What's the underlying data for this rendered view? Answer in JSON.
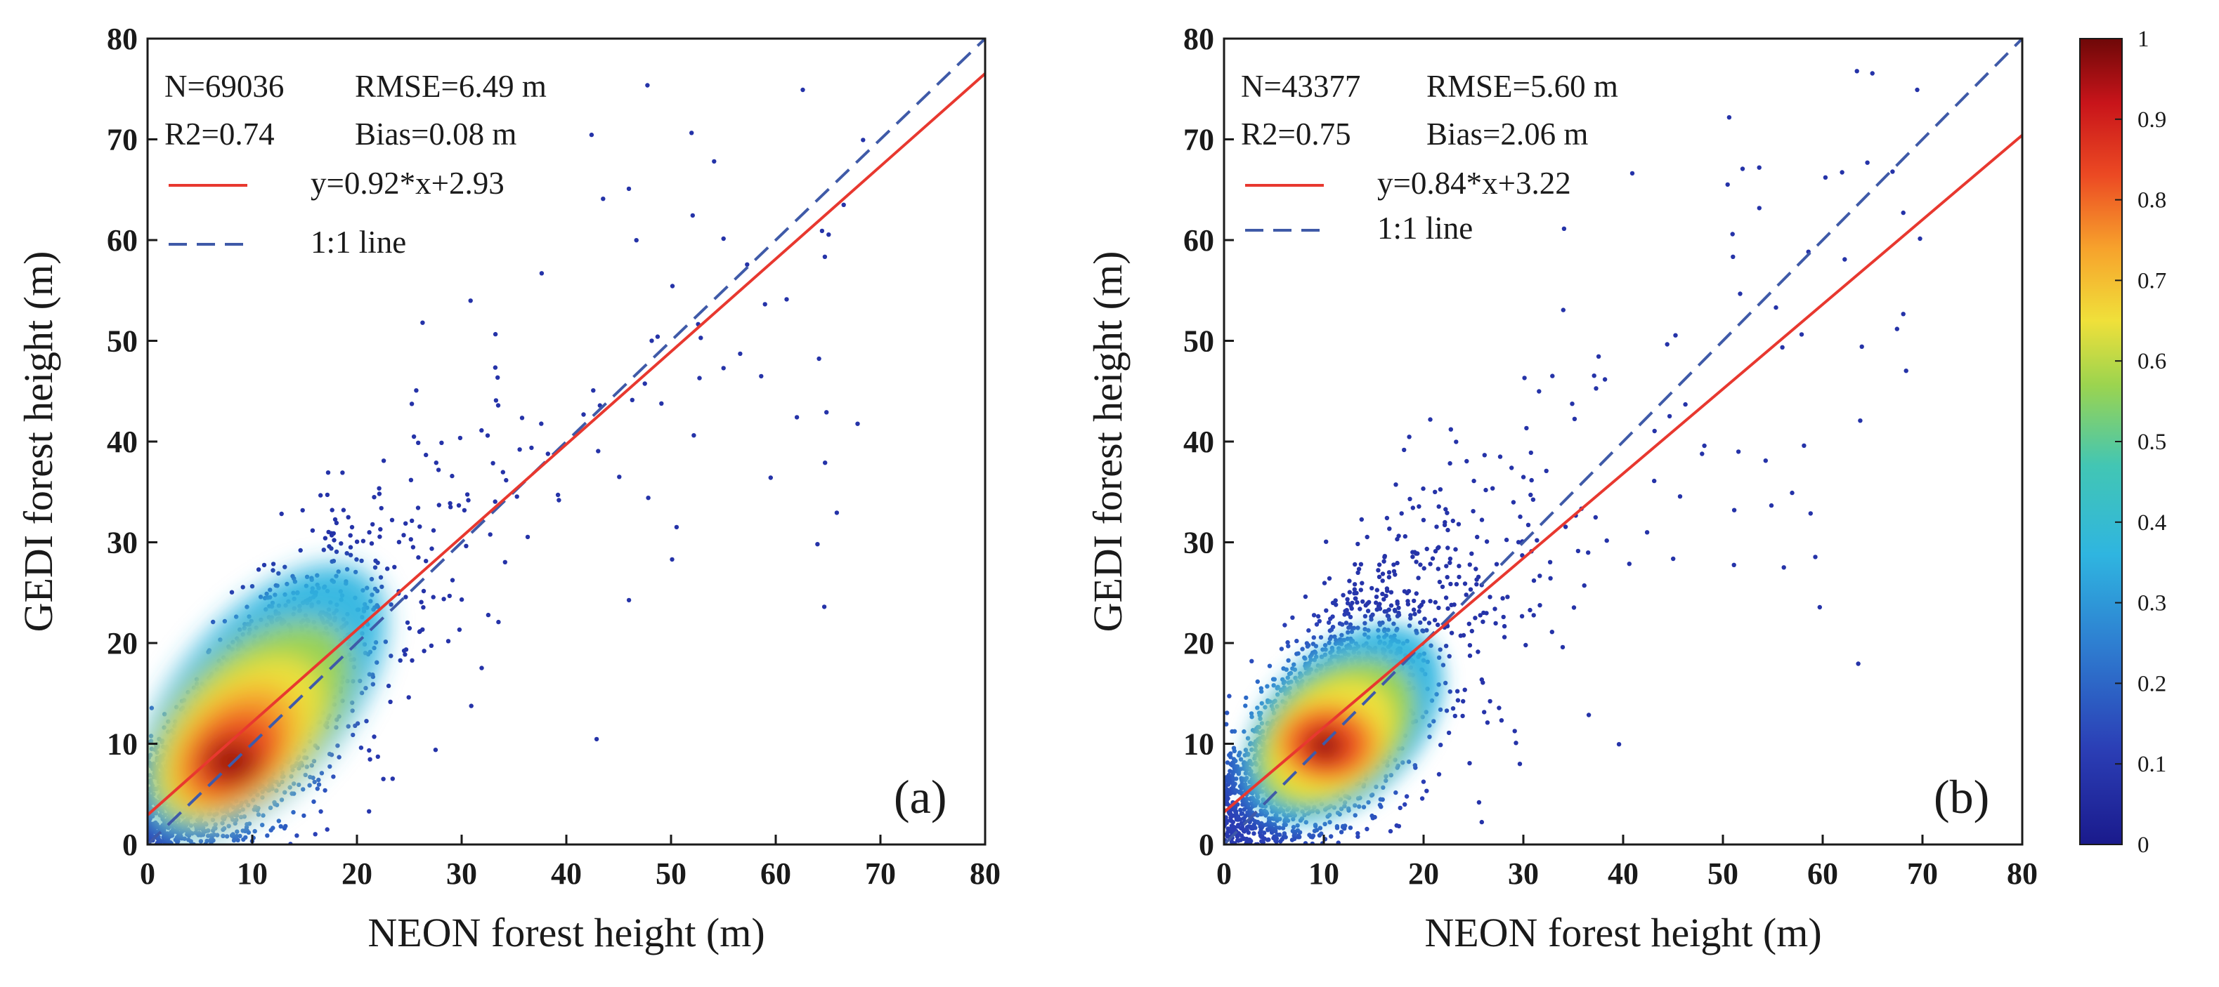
{
  "chart_data": [
    {
      "type": "scatter",
      "panel_label": "(a)",
      "xlabel": "NEON forest height (m)",
      "ylabel": "GEDI forest height (m)",
      "xlim": [
        0,
        80
      ],
      "ylim": [
        0,
        80
      ],
      "x_ticks": [
        "0",
        "10",
        "20",
        "30",
        "40",
        "50",
        "60",
        "70",
        "80"
      ],
      "y_ticks": [
        "0",
        "10",
        "20",
        "30",
        "40",
        "50",
        "60",
        "70",
        "80"
      ],
      "stats": {
        "n": "N=69036",
        "rmse": "RMSE=6.49 m",
        "r2": "R2=0.74",
        "bias": "Bias=0.08 m"
      },
      "legend": {
        "fit_label": "y=0.92*x+2.93",
        "one_to_one_label": "1:1 line"
      },
      "fit": {
        "slope": 0.92,
        "intercept": 2.93
      },
      "density_core": {
        "x_center": 8,
        "y_center": 9,
        "color_scale": "jet",
        "density_range": [
          0,
          1
        ]
      },
      "seed": 7,
      "grid": false
    },
    {
      "type": "scatter",
      "panel_label": "(b)",
      "xlabel": "NEON forest height (m)",
      "ylabel": "GEDI forest height (m)",
      "xlim": [
        0,
        80
      ],
      "ylim": [
        0,
        80
      ],
      "x_ticks": [
        "0",
        "10",
        "20",
        "30",
        "40",
        "50",
        "60",
        "70",
        "80"
      ],
      "y_ticks": [
        "0",
        "10",
        "20",
        "30",
        "40",
        "50",
        "60",
        "70",
        "80"
      ],
      "stats": {
        "n": "N=43377",
        "rmse": "RMSE=5.60 m",
        "r2": "R2=0.75",
        "bias": "Bias=2.06 m"
      },
      "legend": {
        "fit_label": "y=0.84*x+3.22",
        "one_to_one_label": "1:1 line"
      },
      "fit": {
        "slope": 0.84,
        "intercept": 3.22
      },
      "density_core": {
        "x_center": 9,
        "y_center": 10.5,
        "color_scale": "jet",
        "density_range": [
          0,
          1
        ]
      },
      "seed": 11,
      "grid": false
    }
  ],
  "colorbar": {
    "ticks": [
      "0",
      "0.1",
      "0.2",
      "0.3",
      "0.4",
      "0.5",
      "0.6",
      "0.7",
      "0.8",
      "0.9",
      "1"
    ],
    "range": [
      0,
      1
    ],
    "colormap": "jet"
  },
  "colors": {
    "fit_line": "#e8382f",
    "one_to_one_line": "#3f5aa8",
    "low_density": "#1a1a8c",
    "high_density": "#7a0a0a",
    "text": "#1a1a1a"
  }
}
